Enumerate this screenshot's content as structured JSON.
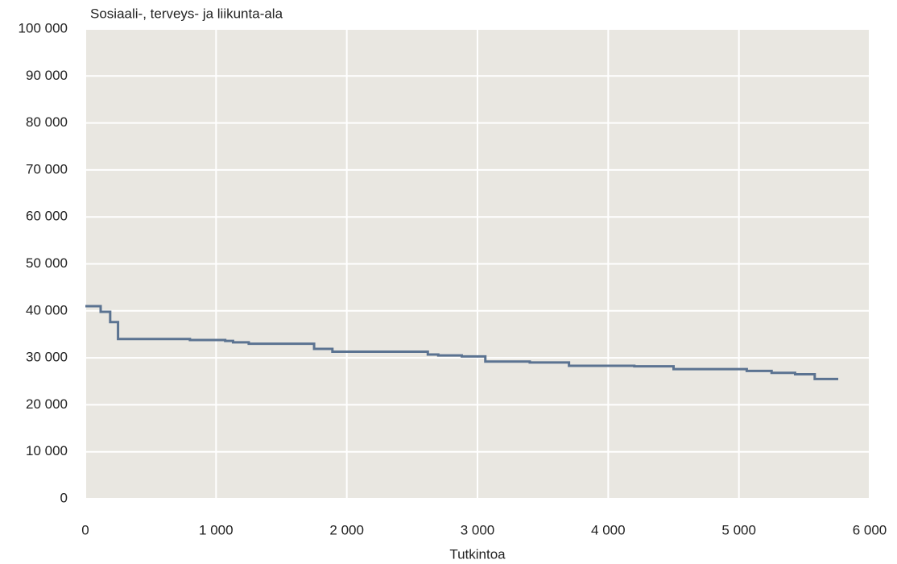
{
  "chart_data": {
    "type": "step",
    "title": "Sosiaali-, terveys- ja liikunta-ala",
    "xlabel": "Tutkintoa",
    "x": [
      0,
      117,
      190,
      250,
      800,
      1070,
      1130,
      1250,
      1750,
      1890,
      2620,
      2700,
      2880,
      3060,
      3400,
      3700,
      4200,
      4500,
      5060,
      5250,
      5430,
      5580,
      5760
    ],
    "series": [
      {
        "name": "Sosiaali-, terveys- ja liikunta-ala",
        "color": "#5b7391",
        "values": [
          41000,
          39800,
          37600,
          34000,
          33800,
          33600,
          33300,
          33000,
          31900,
          31300,
          30700,
          30500,
          30300,
          29200,
          29000,
          28300,
          28200,
          27600,
          27200,
          26800,
          26500,
          25500,
          25500
        ]
      }
    ],
    "xlim": [
      0,
      6000
    ],
    "xticks": [
      0,
      {
        "value": 1000,
        "label": "1 000"
      },
      {
        "value": 2000,
        "label": "2 000"
      },
      {
        "value": 3000,
        "label": "3 000"
      },
      {
        "value": 4000,
        "label": "4 000"
      },
      {
        "value": 5000,
        "label": "5 000"
      },
      {
        "value": 6000,
        "label": "6 000"
      }
    ],
    "ylim": [
      0,
      100000
    ],
    "yticks": [
      0,
      {
        "value": 10000,
        "label": "10 000"
      },
      {
        "value": 20000,
        "label": "20 000"
      },
      {
        "value": 30000,
        "label": "30 000"
      },
      {
        "value": 40000,
        "label": "40 000"
      },
      {
        "value": 50000,
        "label": "50 000"
      },
      {
        "value": 60000,
        "label": "60 000"
      },
      {
        "value": 70000,
        "label": "70 000"
      },
      {
        "value": 80000,
        "label": "80 000"
      },
      {
        "value": 90000,
        "label": "90 000"
      },
      {
        "value": 100000,
        "label": "100 000"
      }
    ],
    "grid": true
  }
}
